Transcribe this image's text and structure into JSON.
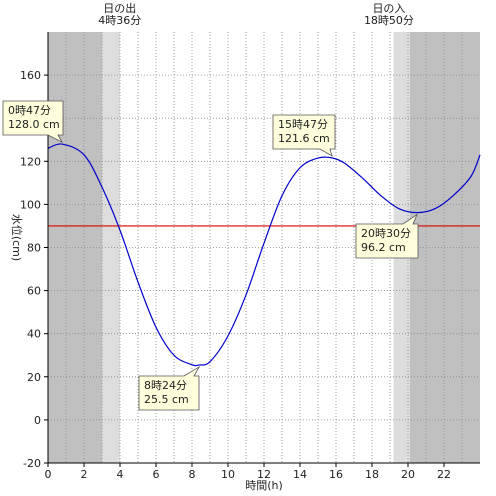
{
  "chart_data": {
    "type": "line",
    "xlabel": "時間(h)",
    "ylabel": "水位(cm)",
    "xlim": [
      0,
      24
    ],
    "ylim": [
      -20,
      180
    ],
    "x_ticks": [
      0,
      2,
      4,
      6,
      8,
      10,
      12,
      14,
      16,
      18,
      20,
      22
    ],
    "y_ticks": [
      -20,
      0,
      20,
      40,
      60,
      80,
      100,
      120,
      140,
      160
    ],
    "grid": true,
    "reference_line": {
      "y": 90,
      "color": "#dd0000"
    },
    "sunrise": {
      "label": "日の出",
      "time_label": "4時36分",
      "x": 4.6
    },
    "sunset": {
      "label": "日の入",
      "time_label": "18時50分",
      "x": 18.83
    },
    "shading": {
      "night_color": "#c0c0c0",
      "twilight_color": "#dddddd",
      "morning_twilight": [
        3.0,
        4.0
      ],
      "evening_twilight": [
        19.2,
        20.1
      ]
    },
    "series": [
      {
        "color": "#0000cc",
        "x": [
          0,
          0.78,
          2.0,
          3.0,
          4.0,
          5.0,
          6.0,
          7.0,
          8.0,
          8.4,
          9.0,
          10.0,
          11.0,
          12.0,
          13.0,
          14.0,
          15.0,
          15.78,
          16.5,
          17.5,
          18.5,
          19.5,
          20.5,
          21.5,
          22.5,
          23.5,
          24.0
        ],
        "y": [
          126,
          128,
          123,
          108,
          88,
          64,
          43,
          30,
          25.6,
          25.5,
          27,
          39,
          58,
          82,
          104,
          117,
          121.5,
          121.6,
          119,
          112,
          104,
          98,
          96.2,
          98,
          104,
          113,
          123
        ]
      }
    ],
    "annotations": [
      {
        "time": "0時47分",
        "value": "128.0 cm",
        "x": 0.78,
        "y": 128.0
      },
      {
        "time": "8時24分",
        "value": "25.5 cm",
        "x": 8.4,
        "y": 25.5
      },
      {
        "time": "15時47分",
        "value": "121.6 cm",
        "x": 15.78,
        "y": 121.6
      },
      {
        "time": "20時30分",
        "value": "96.2 cm",
        "x": 20.5,
        "y": 96.2
      }
    ]
  }
}
